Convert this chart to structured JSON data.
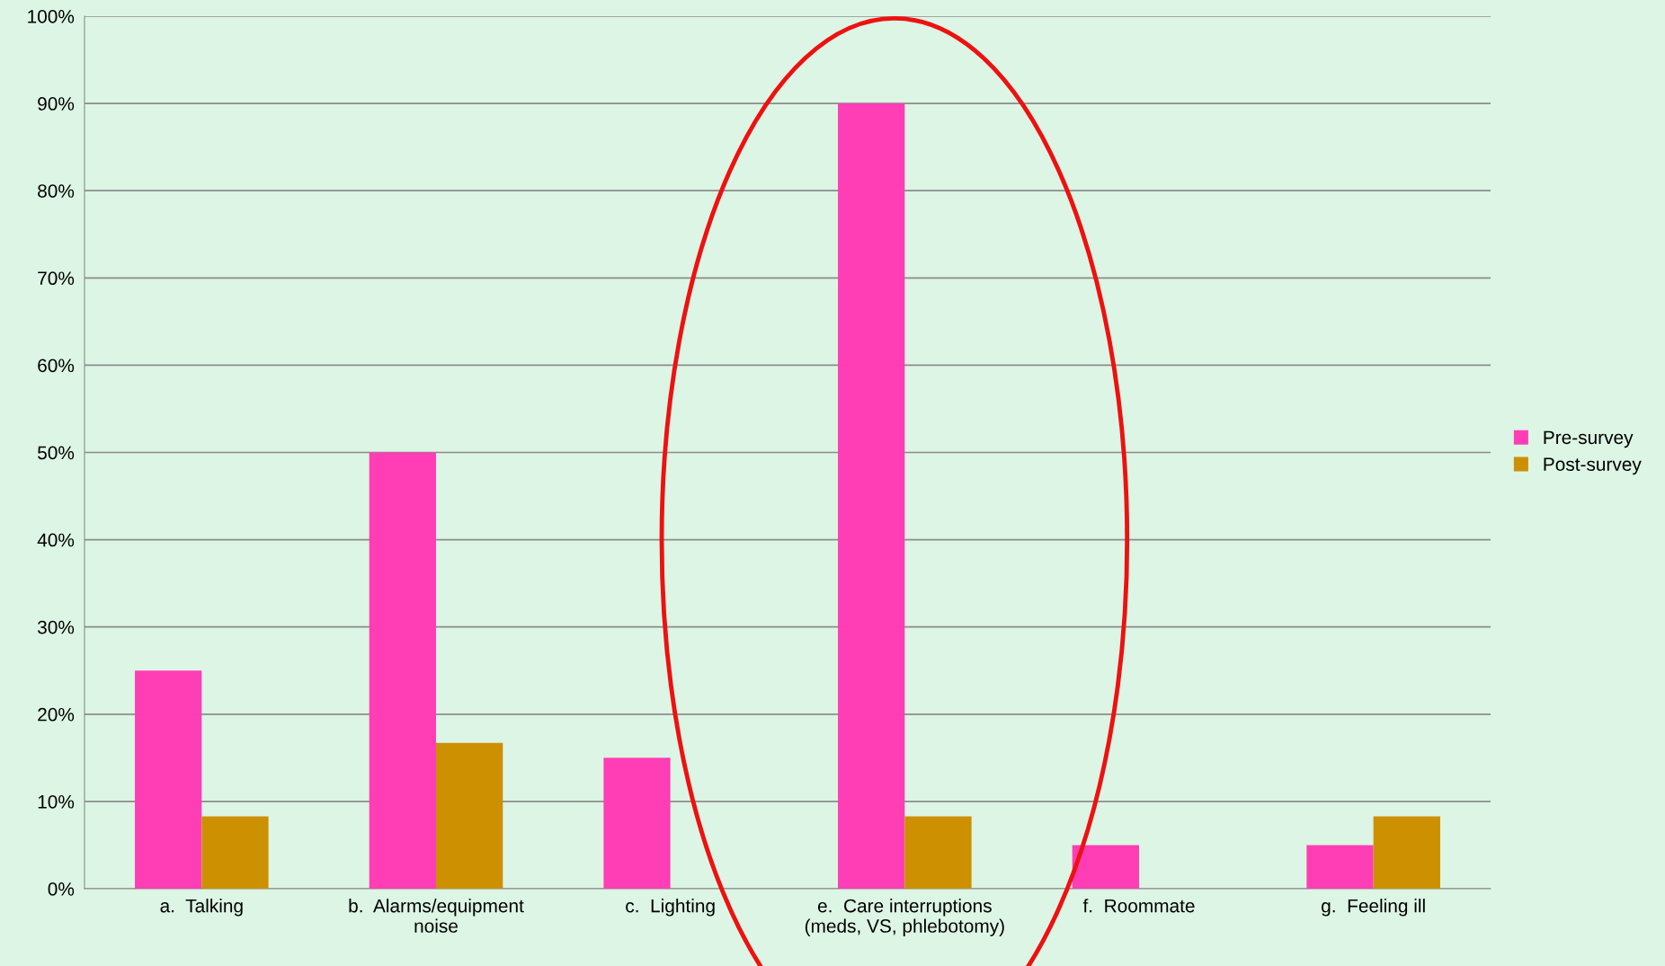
{
  "chart_data": {
    "type": "bar",
    "categories": [
      "a.  Talking",
      "b.  Alarms/equipment\nnoise",
      "c.  Lighting",
      "e.  Care interruptions\n(meds, VS, phlebotomy)",
      "f.  Roommate",
      "g.  Feeling ill"
    ],
    "series": [
      {
        "name": "Pre-survey",
        "color": "#ff3eb5",
        "values": [
          25,
          50,
          15,
          90,
          5,
          5
        ]
      },
      {
        "name": "Post-survey",
        "color": "#cc9000",
        "values": [
          8.3,
          16.7,
          0,
          8.3,
          0,
          8.3
        ]
      }
    ],
    "ylim": [
      0,
      100
    ],
    "yticks": [
      {
        "value": 0,
        "label": "0%"
      },
      {
        "value": 10,
        "label": "10%"
      },
      {
        "value": 20,
        "label": "20%"
      },
      {
        "value": 30,
        "label": "30%"
      },
      {
        "value": 40,
        "label": "40%"
      },
      {
        "value": 50,
        "label": "50%"
      },
      {
        "value": 60,
        "label": "60%"
      },
      {
        "value": 70,
        "label": "70%"
      },
      {
        "value": 80,
        "label": "80%"
      },
      {
        "value": 90,
        "label": "90%"
      },
      {
        "value": 100,
        "label": "100%"
      }
    ],
    "grid": "y",
    "legend": "right"
  }
}
